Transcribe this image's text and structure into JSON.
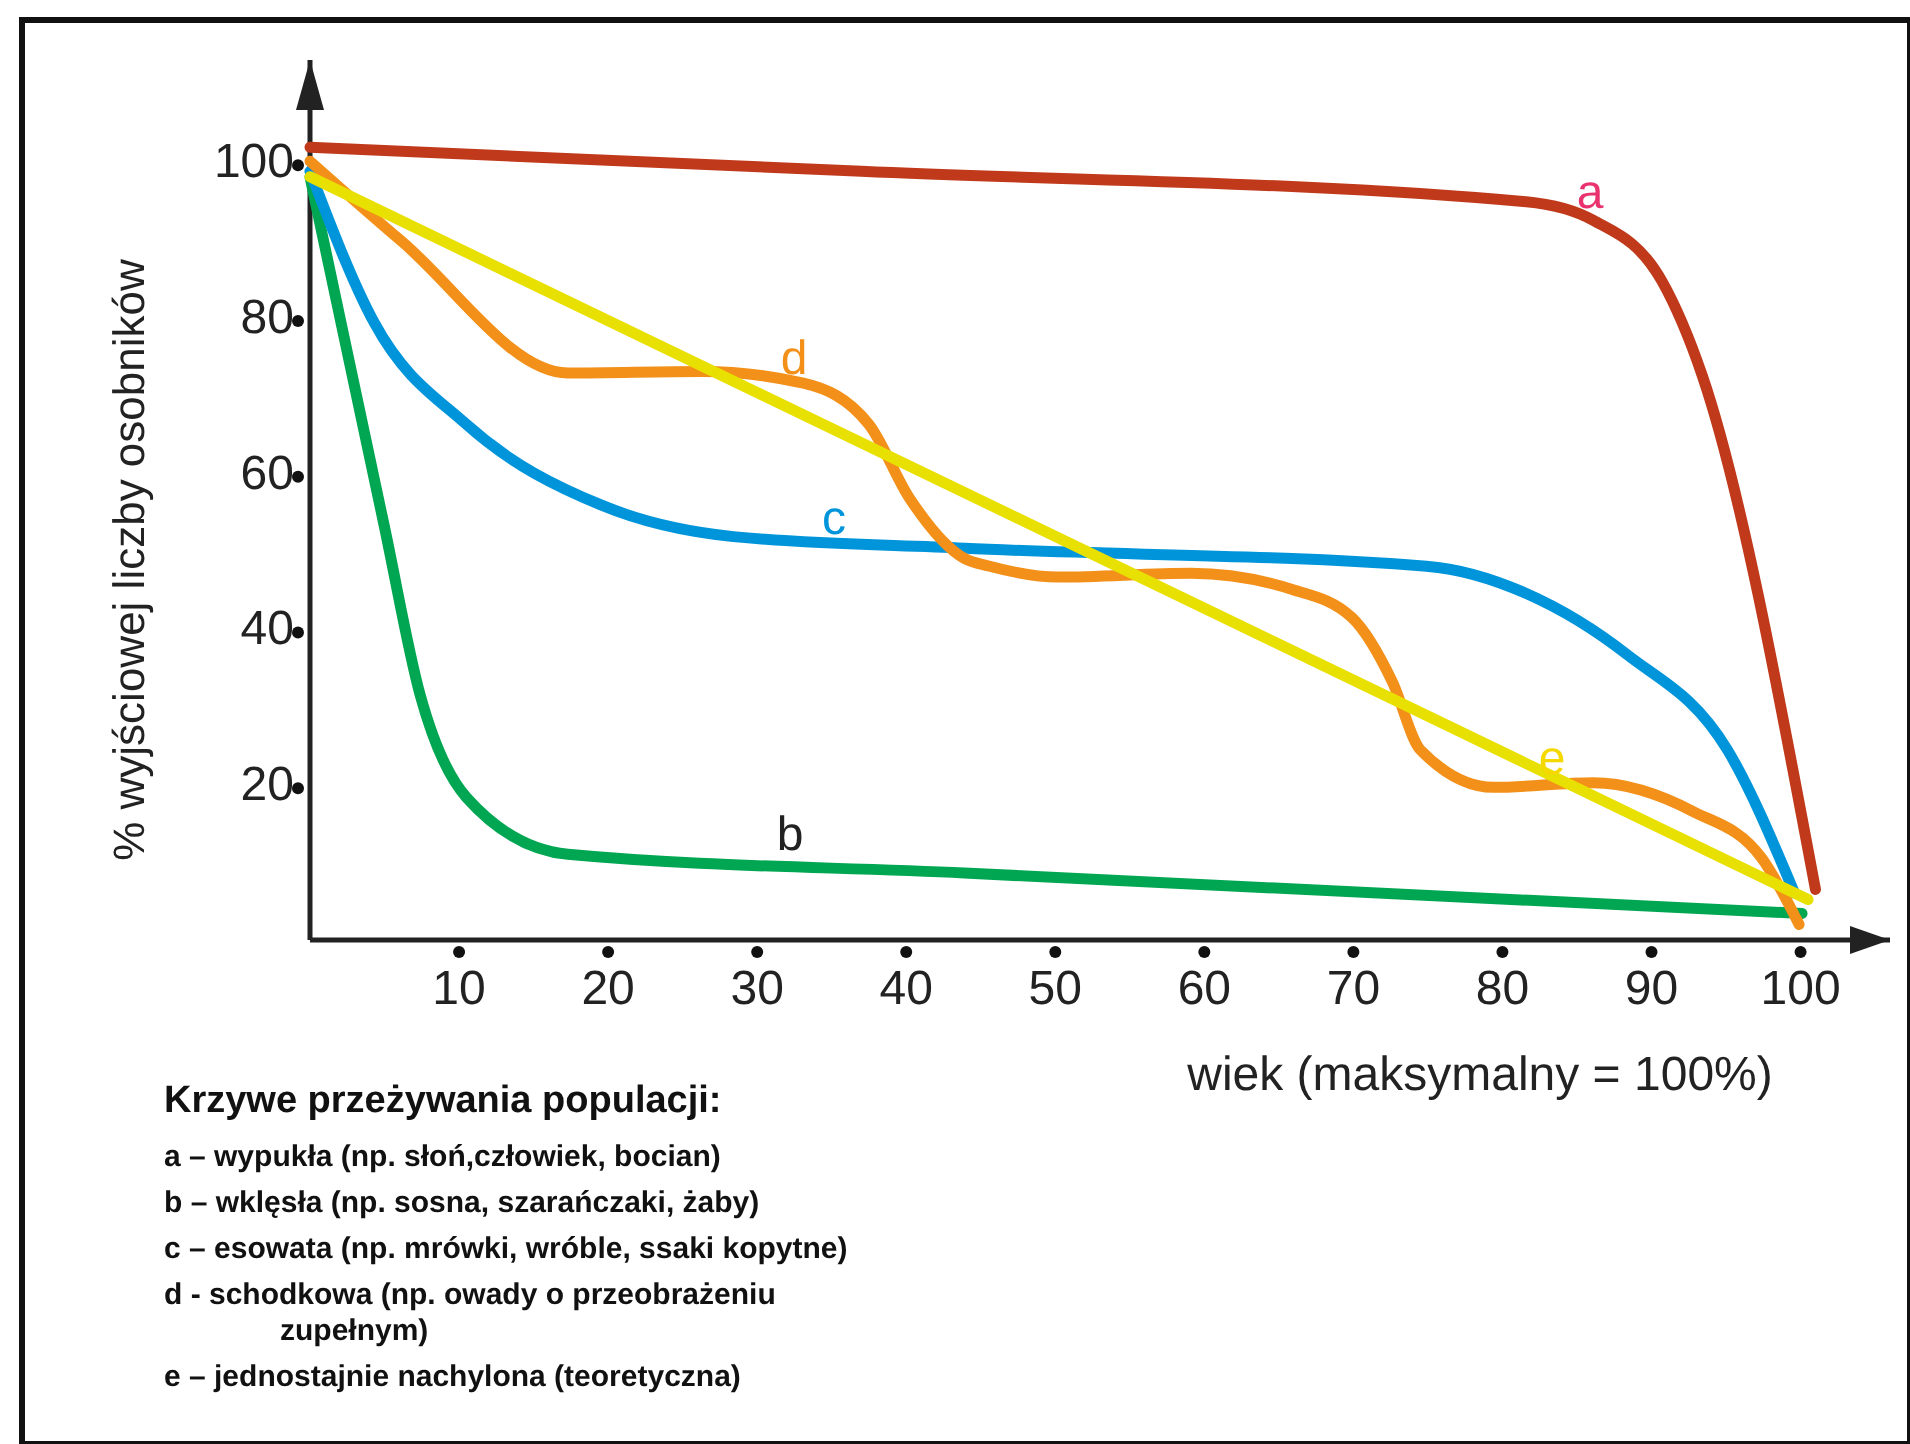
{
  "chart_data": {
    "type": "line",
    "xlabel": "wiek (maksymalny = 100%)",
    "ylabel": "% wyjściowej liczby osobników",
    "xlim": [
      0,
      106
    ],
    "ylim": [
      0,
      113
    ],
    "xticks": [
      10,
      20,
      30,
      40,
      50,
      60,
      70,
      80,
      90,
      100
    ],
    "yticks": [
      20,
      40,
      60,
      80,
      100
    ],
    "grid": false,
    "marker": "none",
    "line_style": "solid",
    "series": [
      {
        "name": "a",
        "color": "#c0391b",
        "x": [
          0,
          37,
          81.6,
          86.1,
          90.7,
          93.4,
          101
        ],
        "values": [
          101.8,
          98.7,
          94.8,
          92.4,
          84.6,
          72.5,
          6.5
        ]
      },
      {
        "name": "b",
        "color": "#00a651",
        "x": [
          0,
          5,
          7.4,
          10.5,
          17.3,
          43.9,
          100.1
        ],
        "values": [
          98,
          53,
          31.4,
          18.3,
          11,
          8.6,
          3.4
        ]
      },
      {
        "name": "c",
        "color": "#0095da",
        "x": [
          0,
          4.3,
          10.5,
          19.6,
          28.4,
          43.9,
          74.9,
          81.6,
          88.4,
          95.1,
          99.6
        ],
        "values": [
          98.7,
          79.3,
          66.2,
          55.8,
          51.8,
          50.3,
          48,
          44.5,
          36.6,
          24.4,
          6
        ]
      },
      {
        "name": "d",
        "color": "#f39019",
        "x": [
          0,
          6.1,
          17.3,
          26.3,
          33.1,
          37.5,
          40.2,
          43.9,
          45.6,
          50.2,
          59.1,
          65.9,
          69.9,
          72.6,
          74.5,
          79.4,
          86.1,
          92.8,
          97.4,
          99.9
        ],
        "values": [
          100,
          89.8,
          72.8,
          73,
          71.5,
          66.2,
          56.8,
          49,
          48,
          46.6,
          47.1,
          45,
          41.4,
          33.2,
          24.4,
          19.6,
          20.2,
          16.5,
          10.5,
          2
        ]
      },
      {
        "name": "e",
        "color": "#e8e000",
        "x": [
          0,
          100.5
        ],
        "values": [
          98,
          5.2
        ]
      }
    ],
    "annotations": [
      "Krzywe przeżywania populacji:",
      "a – wypukła (np. słoń,człowiek, bocian)",
      "b – wklęsła (np. sosna, szarańczaki, żaby)",
      "c – esowata (np. mrówki, wróble, ssaki kopytne)",
      "d -  schodkowa (np. owady o przeobrażeniu\nzupełnym)",
      "e – jednostajnie nachylona (teoretyczna)"
    ]
  }
}
